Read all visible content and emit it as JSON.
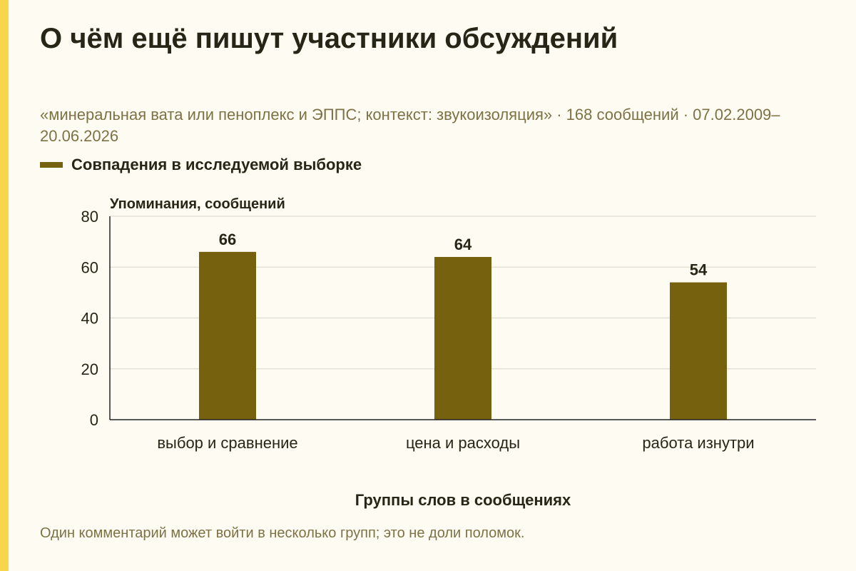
{
  "title": "О чём ещё пишут участники обсуждений",
  "subtitle": "«минеральная вата или пеноплекс и ЭППС; контекст: звукоизоляция» · 168 сообщений · 07.02.2009–20.06.2026",
  "footnote": "Один комментарий может войти в несколько групп; это не доли поломок.",
  "colors": {
    "accent_stripe": "#f6d64a",
    "bar": "#76610e",
    "background": "#fdfbf2"
  },
  "chart_data": {
    "type": "bar",
    "categories": [
      "выбор и сравнение",
      "цена и расходы",
      "работа изнутри"
    ],
    "series": [
      {
        "name": "Совпадения в исследуемой выборке",
        "values": [
          66,
          64,
          54
        ]
      }
    ],
    "xlabel": "Группы слов в сообщениях",
    "ylabel": "Упоминания, сообщений",
    "ylim": [
      0,
      80
    ],
    "yticks": [
      0,
      20,
      40,
      60,
      80
    ],
    "grid": true,
    "data_labels": true,
    "legend_position": "top-left"
  }
}
